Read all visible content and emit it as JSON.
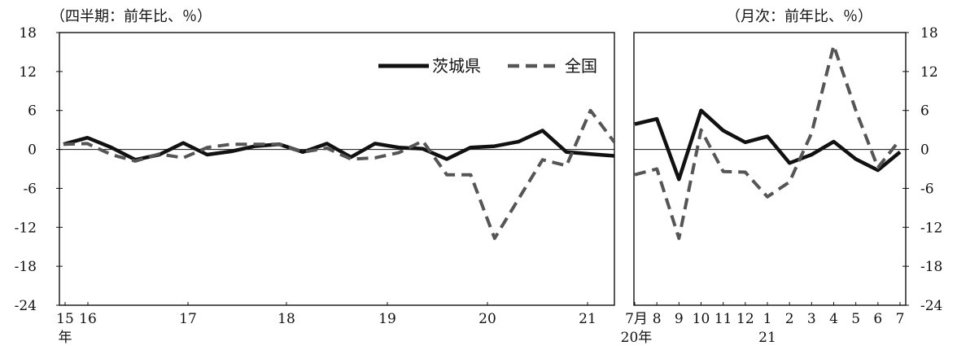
{
  "chart_data": [
    {
      "type": "line",
      "unit_label": "（四半期：前年比、％）",
      "x_tick_labels": [
        "15",
        "16",
        "17",
        "18",
        "19",
        "20",
        "21"
      ],
      "x_unit_label": "年",
      "y_ticks": [
        18,
        12,
        6,
        0,
        -6,
        -12,
        -18,
        -24
      ],
      "ylim": [
        -24,
        18
      ],
      "legend": {
        "position": "top-right",
        "entries": [
          "茨城県",
          "全国"
        ]
      },
      "x": [
        "15Q4",
        "16Q1",
        "16Q2",
        "16Q3",
        "16Q4",
        "17Q1",
        "17Q2",
        "17Q3",
        "17Q4",
        "18Q1",
        "18Q2",
        "18Q3",
        "18Q4",
        "19Q1",
        "19Q2",
        "19Q3",
        "19Q4",
        "20Q1",
        "20Q2",
        "20Q3",
        "20Q4",
        "21Q1",
        "21Q2",
        "21Q3"
      ],
      "series": [
        {
          "name": "茨城県",
          "style": "solid",
          "color": "#111111",
          "values": [
            0.8,
            1.8,
            0.3,
            -1.6,
            -0.8,
            1.0,
            -0.8,
            -0.3,
            0.5,
            0.8,
            -0.4,
            0.9,
            -1.2,
            0.9,
            0.3,
            0.1,
            -1.5,
            0.3,
            0.5,
            1.2,
            2.9,
            -0.4,
            -0.7,
            -1.0
          ]
        },
        {
          "name": "全国",
          "style": "dashed",
          "color": "#555555",
          "values": [
            0.8,
            0.9,
            -0.8,
            -1.8,
            -0.7,
            -1.3,
            0.3,
            0.8,
            0.8,
            0.8,
            -0.4,
            0.2,
            -1.5,
            -1.3,
            -0.5,
            1.3,
            -3.9,
            -3.9,
            -13.7,
            -7.6,
            -1.6,
            -2.5,
            6.0,
            1.1
          ]
        }
      ]
    },
    {
      "type": "line",
      "unit_label": "（月次：前年比、％）",
      "x": [
        "7",
        "8",
        "9",
        "10",
        "11",
        "12",
        "1",
        "2",
        "3",
        "4",
        "5",
        "6",
        "7"
      ],
      "x_tick_labels": [
        "7月",
        "8",
        "9",
        "10",
        "11",
        "12",
        "1",
        "2",
        "3",
        "4",
        "5",
        "6",
        "7"
      ],
      "x_year_labels": [
        "20年",
        "21"
      ],
      "y_ticks": [
        18,
        12,
        6,
        0,
        -6,
        -12,
        -18,
        -24
      ],
      "ylim": [
        -24,
        18
      ],
      "series": [
        {
          "name": "茨城県",
          "style": "solid",
          "color": "#111111",
          "values": [
            3.9,
            4.7,
            -4.6,
            6.0,
            2.9,
            1.1,
            2.0,
            -2.1,
            -0.8,
            1.2,
            -1.5,
            -3.2,
            -0.4
          ]
        },
        {
          "name": "全国",
          "style": "dashed",
          "color": "#555555",
          "values": [
            -3.9,
            -3.0,
            -13.7,
            3.0,
            -3.4,
            -3.5,
            -7.3,
            -5.0,
            2.5,
            16.0,
            6.0,
            -2.8,
            1.5
          ]
        }
      ]
    }
  ]
}
